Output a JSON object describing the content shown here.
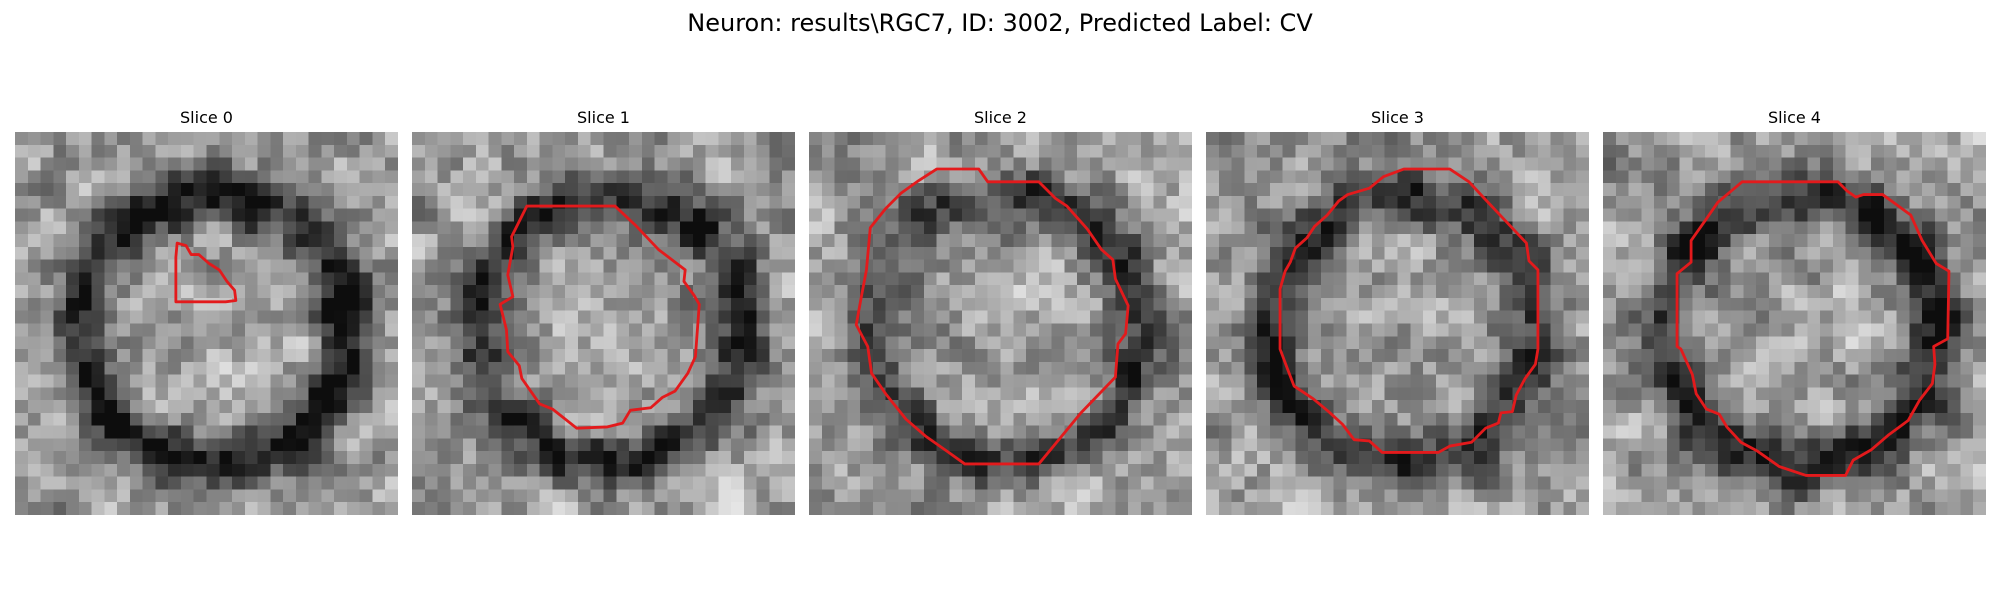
{
  "figure": {
    "title": "Neuron: results\\RGC7, ID: 3002, Predicted Label: CV"
  },
  "outline_color": "#e31a1c",
  "colormap": "gray",
  "slices": [
    {
      "title": "Slice 0",
      "seed": 11,
      "darkness": 0.55
    },
    {
      "title": "Slice 1",
      "seed": 23,
      "darkness": 0.45
    },
    {
      "title": "Slice 2",
      "seed": 37,
      "darkness": 0.4
    },
    {
      "title": "Slice 3",
      "seed": 53,
      "darkness": 0.45
    },
    {
      "title": "Slice 4",
      "seed": 71,
      "darkness": 0.5
    }
  ]
}
